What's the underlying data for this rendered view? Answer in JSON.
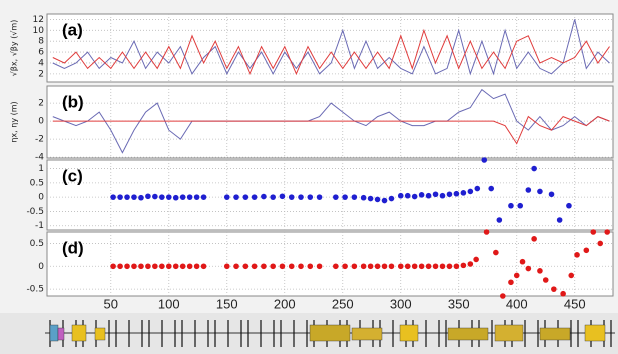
{
  "chart_data": [
    {
      "type": "line",
      "label": "(a)",
      "ylabel": "√βx, √βy (√m)",
      "x": [
        0,
        10,
        20,
        30,
        40,
        50,
        60,
        70,
        80,
        90,
        100,
        110,
        120,
        130,
        140,
        150,
        160,
        170,
        180,
        190,
        200,
        210,
        220,
        230,
        240,
        250,
        260,
        270,
        280,
        290,
        300,
        310,
        320,
        330,
        340,
        350,
        360,
        370,
        380,
        390,
        400,
        410,
        420,
        430,
        440,
        450,
        460,
        470,
        480
      ],
      "series": [
        {
          "name": "√βx",
          "color": "#6a6ab4",
          "values": [
            4,
            3,
            4,
            6,
            3,
            5,
            4,
            8,
            3,
            6,
            4,
            7,
            2,
            5,
            7,
            2,
            6,
            3,
            6,
            2,
            6,
            3,
            6,
            2,
            4,
            10,
            3,
            8,
            3,
            5,
            3,
            2,
            7,
            2,
            3,
            10,
            2,
            8,
            2,
            10,
            3,
            6,
            3,
            2,
            4,
            12,
            3,
            6,
            4
          ]
        },
        {
          "name": "√βy",
          "color": "#e03c3c",
          "values": [
            5,
            4,
            6,
            3,
            5,
            3,
            6,
            3,
            6,
            3,
            7,
            3,
            9,
            4,
            8,
            3,
            7,
            2,
            7,
            3,
            7,
            2,
            7,
            3,
            6,
            3,
            6,
            3,
            6,
            3,
            9,
            3,
            10,
            4,
            9,
            3,
            8,
            3,
            6,
            3,
            8,
            9,
            4,
            5,
            4,
            5,
            8,
            4,
            7
          ]
        }
      ],
      "xlim": [
        -5,
        483
      ],
      "ylim": [
        0.5,
        13
      ],
      "yticks": [
        2,
        4,
        6,
        8,
        10,
        12
      ],
      "grid": true
    },
    {
      "type": "line",
      "label": "(b)",
      "ylabel": "ηx, ηy (m)",
      "x": [
        0,
        10,
        20,
        30,
        40,
        50,
        60,
        70,
        80,
        90,
        100,
        110,
        120,
        130,
        140,
        150,
        160,
        170,
        180,
        190,
        200,
        210,
        220,
        230,
        240,
        250,
        260,
        270,
        280,
        290,
        300,
        310,
        320,
        330,
        340,
        350,
        360,
        370,
        380,
        390,
        400,
        410,
        420,
        430,
        440,
        450,
        460,
        470,
        480
      ],
      "series": [
        {
          "name": "ηx",
          "color": "#6a6ab4",
          "values": [
            0.5,
            0,
            -0.5,
            0,
            1,
            -1,
            -3.5,
            -1,
            1,
            2,
            -1,
            -2,
            0,
            0,
            0,
            0,
            0,
            0,
            0,
            0,
            0,
            0,
            0,
            0.5,
            2,
            1,
            0,
            -0.5,
            0.5,
            1,
            0,
            -0.5,
            -0.5,
            0,
            0,
            1,
            1.5,
            3.5,
            2.5,
            3,
            0,
            -1,
            0.5,
            -1,
            -0.5,
            0.5,
            -0.5,
            0.5,
            0
          ]
        },
        {
          "name": "ηy",
          "color": "#e03c3c",
          "values": [
            0,
            0,
            0,
            0,
            0,
            0,
            0,
            0,
            0,
            0,
            0,
            0,
            0,
            0,
            0,
            0,
            0,
            0,
            0,
            0,
            0,
            0,
            0,
            0,
            0,
            0,
            0,
            0,
            0,
            0,
            0,
            0,
            0,
            0,
            0,
            0,
            0,
            0,
            0,
            -0.5,
            -2.5,
            0.5,
            -0.5,
            -1,
            0.5,
            0,
            -0.5,
            0.5,
            0
          ]
        }
      ],
      "xlim": [
        -5,
        483
      ],
      "ylim": [
        -4.1,
        3.9
      ],
      "yticks": [
        -4,
        -2,
        0,
        2
      ],
      "grid": true
    },
    {
      "type": "scatter",
      "label": "(c)",
      "x": [
        52,
        58,
        64,
        70,
        76,
        82,
        88,
        94,
        100,
        106,
        112,
        118,
        124,
        130,
        150,
        158,
        166,
        174,
        182,
        190,
        198,
        206,
        214,
        222,
        230,
        244,
        252,
        260,
        268,
        274,
        280,
        286,
        292,
        300,
        306,
        312,
        318,
        324,
        330,
        336,
        342,
        348,
        354,
        360,
        366,
        372,
        378,
        385,
        395,
        403,
        410,
        415,
        420,
        430,
        437,
        445
      ],
      "series": [
        {
          "name": "c",
          "color": "#1f1fd0",
          "values": [
            0,
            0,
            0,
            0,
            -0.02,
            0.03,
            0.02,
            0,
            0,
            -0.02,
            0,
            0,
            0,
            0,
            0,
            0,
            0,
            0,
            0.02,
            0,
            0.03,
            0,
            0,
            0,
            0,
            0,
            0,
            0,
            -0.02,
            -0.05,
            -0.08,
            -0.12,
            -0.05,
            0.05,
            0.05,
            0.02,
            0.08,
            0.05,
            0.1,
            0.05,
            0.1,
            0.12,
            0.15,
            0.2,
            0.3,
            1.3,
            0.3,
            -0.8,
            -0.3,
            -0.3,
            0.25,
            1.0,
            0.2,
            0.1,
            -0.8,
            -0.3
          ]
        }
      ],
      "xlim": [
        -5,
        483
      ],
      "ylim": [
        -1.15,
        1.3
      ],
      "yticks": [
        -1,
        -0.5,
        0,
        0.5,
        1
      ],
      "grid": true
    },
    {
      "type": "scatter",
      "label": "(d)",
      "x": [
        52,
        58,
        64,
        70,
        76,
        82,
        88,
        94,
        100,
        106,
        112,
        118,
        124,
        130,
        150,
        158,
        166,
        174,
        182,
        190,
        198,
        206,
        214,
        222,
        230,
        244,
        252,
        260,
        268,
        274,
        280,
        286,
        292,
        300,
        306,
        312,
        318,
        324,
        330,
        336,
        342,
        348,
        354,
        360,
        365,
        374,
        382,
        388,
        395,
        400,
        405,
        410,
        415,
        420,
        425,
        432,
        440,
        447,
        452,
        460,
        466,
        472,
        478
      ],
      "series": [
        {
          "name": "d",
          "color": "#e01818",
          "values": [
            0,
            0,
            0,
            0,
            0,
            0,
            0,
            0,
            0,
            0,
            0,
            0,
            0,
            0,
            0,
            0,
            0,
            0,
            0,
            0,
            0,
            0,
            0,
            0,
            0,
            0,
            0,
            0,
            0,
            0,
            0,
            0,
            0,
            0,
            0,
            0,
            0,
            0,
            0,
            0,
            0,
            0,
            0.02,
            0.05,
            0.15,
            0.75,
            0.3,
            -0.65,
            -0.35,
            -0.2,
            0.1,
            -0.05,
            0.6,
            -0.1,
            -0.3,
            -0.5,
            -0.6,
            -0.2,
            0.25,
            0.35,
            0.75,
            0.5,
            0.75
          ]
        }
      ],
      "xlim": [
        -5,
        483
      ],
      "ylim": [
        -0.65,
        0.75
      ],
      "yticks": [
        -0.5,
        0,
        0.5
      ],
      "grid": true,
      "xticks": [
        50,
        100,
        150,
        200,
        250,
        300,
        350,
        400,
        450
      ]
    }
  ]
}
